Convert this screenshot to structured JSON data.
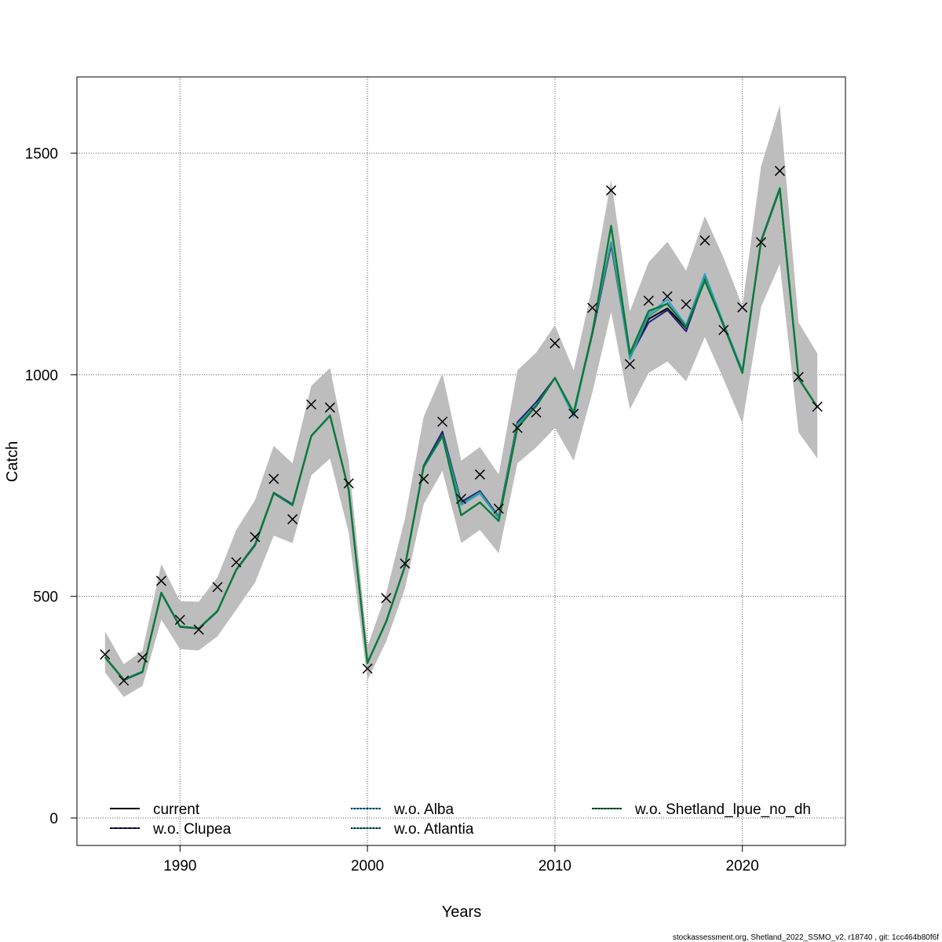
{
  "footer": "stockassessment.org, Shetland_2022_SSMO_v2, r18740 , git: 1cc464b80f6f",
  "chart_data": {
    "type": "line",
    "title": "",
    "xlabel": "Years",
    "ylabel": "Catch",
    "xlim": [
      1984.5,
      2025.5
    ],
    "ylim": [
      -62,
      1672
    ],
    "x_ticks": [
      1990,
      2000,
      2010,
      2020
    ],
    "y_ticks": [
      0,
      500,
      1000,
      1500
    ],
    "grid": true,
    "legend_position": "bottom",
    "years": [
      1986,
      1987,
      1988,
      1989,
      1990,
      1991,
      1992,
      1993,
      1994,
      1995,
      1996,
      1997,
      1998,
      1999,
      2000,
      2001,
      2002,
      2003,
      2004,
      2005,
      2006,
      2007,
      2008,
      2009,
      2010,
      2011,
      2012,
      2013,
      2014,
      2015,
      2016,
      2017,
      2018,
      2019,
      2020,
      2021,
      2022,
      2023,
      2024
    ],
    "observed": [
      369,
      310,
      362,
      535,
      447,
      425,
      521,
      577,
      634,
      765,
      674,
      933,
      926,
      755,
      337,
      496,
      574,
      765,
      894,
      720,
      775,
      698,
      880,
      915,
      1071,
      912,
      1151,
      1416,
      1024,
      1167,
      1177,
      1159,
      1303,
      1101,
      1152,
      1299,
      1460,
      995,
      928
    ],
    "ci_lower": [
      328,
      273,
      298,
      448,
      381,
      378,
      410,
      470,
      531,
      637,
      620,
      773,
      811,
      644,
      311,
      398,
      518,
      708,
      783,
      620,
      650,
      597,
      800,
      836,
      880,
      806,
      960,
      1142,
      922,
      1004,
      1030,
      985,
      1085,
      990,
      890,
      1153,
      1250,
      870,
      811
    ],
    "ci_upper": [
      421,
      347,
      378,
      573,
      489,
      488,
      543,
      650,
      717,
      840,
      800,
      975,
      1015,
      807,
      387,
      507,
      676,
      905,
      1003,
      806,
      837,
      775,
      1010,
      1050,
      1112,
      1010,
      1200,
      1440,
      1143,
      1254,
      1300,
      1235,
      1358,
      1264,
      1155,
      1470,
      1608,
      1118,
      1048
    ],
    "series": [
      {
        "name": "current",
        "color": "#000000",
        "dash": "solid",
        "values": [
          363,
          312,
          330,
          508,
          432,
          428,
          467,
          560,
          615,
          733,
          706,
          862,
          908,
          740,
          350,
          443,
          568,
          793,
          865,
          710,
          735,
          678,
          888,
          930,
          993,
          915,
          1095,
          1296,
          1042,
          1126,
          1150,
          1105,
          1220,
          1113,
          1008,
          1302,
          1420,
          992,
          927
        ]
      },
      {
        "name": "w.o. Clupea",
        "color": "#1f1f7a",
        "dash": "dashed",
        "values": [
          362,
          311,
          329,
          507,
          431,
          427,
          466,
          561,
          617,
          734,
          708,
          862,
          908,
          740,
          349,
          444,
          569,
          795,
          872,
          713,
          738,
          680,
          893,
          938,
          993,
          912,
          1092,
          1292,
          1040,
          1118,
          1146,
          1098,
          1216,
          1110,
          1006,
          1300,
          1418,
          991,
          927
        ]
      },
      {
        "name": "w.o. Alba",
        "color": "#3a9fd6",
        "dash": "dotted",
        "values": [
          363,
          312,
          331,
          509,
          432,
          428,
          468,
          560,
          614,
          732,
          705,
          861,
          907,
          739,
          351,
          443,
          568,
          790,
          860,
          706,
          732,
          676,
          886,
          928,
          993,
          905,
          1098,
          1300,
          1035,
          1137,
          1170,
          1112,
          1228,
          1116,
          1010,
          1303,
          1420,
          992,
          927
        ]
      },
      {
        "name": "w.o. Atlantia",
        "color": "#2e9a8a",
        "dash": "dotted",
        "values": [
          363,
          312,
          330,
          508,
          432,
          428,
          467,
          559,
          615,
          733,
          706,
          862,
          908,
          740,
          350,
          443,
          568,
          792,
          864,
          709,
          735,
          678,
          889,
          931,
          993,
          911,
          1097,
          1298,
          1040,
          1132,
          1162,
          1107,
          1223,
          1114,
          1008,
          1302,
          1420,
          992,
          927
        ]
      },
      {
        "name": "w.o. Shetland_lpue_no_dh",
        "color": "#0a7a3a",
        "dash": "dotted",
        "values": [
          363,
          312,
          330,
          508,
          432,
          428,
          467,
          560,
          615,
          733,
          706,
          862,
          908,
          740,
          350,
          443,
          568,
          793,
          862,
          683,
          712,
          670,
          880,
          930,
          993,
          915,
          1095,
          1336,
          1048,
          1144,
          1160,
          1108,
          1212,
          1112,
          1004,
          1302,
          1421,
          992,
          927
        ]
      }
    ]
  }
}
